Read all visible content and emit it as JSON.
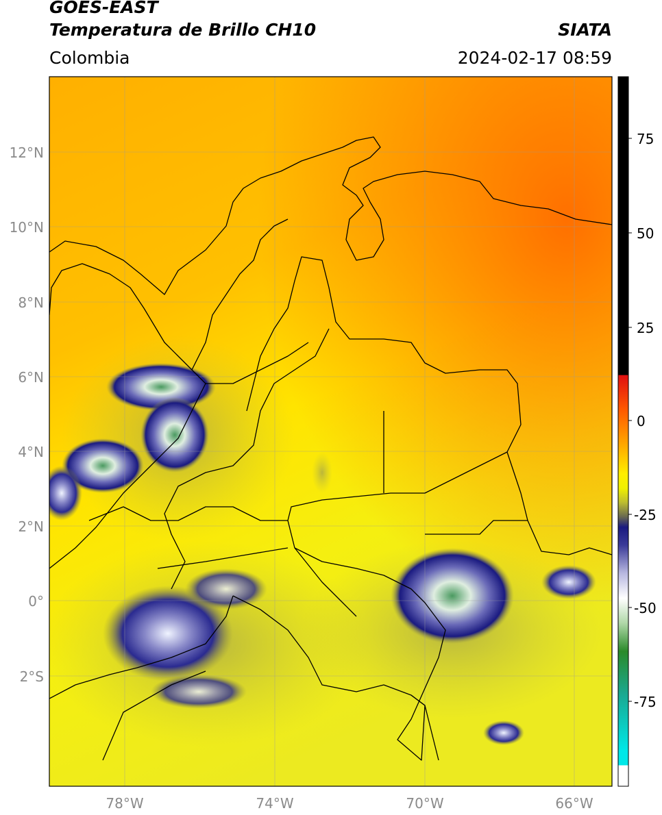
{
  "header": {
    "satellite": "GOES-EAST",
    "product": "Temperatura de Brillo CH10",
    "agency": "SIATA",
    "region": "Colombia",
    "datetime": "2024-02-17 08:59"
  },
  "map": {
    "lat_labels": [
      "12°N",
      "10°N",
      "8°N",
      "6°N",
      "4°N",
      "2°N",
      "0°",
      "2°S"
    ],
    "lon_labels": [
      "78°W",
      "74°W",
      "70°W",
      "66°W"
    ],
    "extent": {
      "lon_min": -80.1,
      "lon_max": -65.1,
      "lat_min": -4.9,
      "lat_max": 14.0
    },
    "gridlines": true
  },
  "colorbar": {
    "tick_labels": [
      "75",
      "50",
      "25",
      "0",
      "-25",
      "-50",
      "-75"
    ],
    "range": [
      -95,
      90
    ],
    "colors": {
      "hot": "#000000",
      "red": "#e01010",
      "orange": "#ff7a00",
      "yellow": "#ffee00",
      "olive": "#8a8a40",
      "navy": "#1a1a80",
      "white": "#ffffff",
      "green": "#2a8a2a",
      "teal": "#1aa890",
      "cyan": "#00e8e8"
    }
  }
}
